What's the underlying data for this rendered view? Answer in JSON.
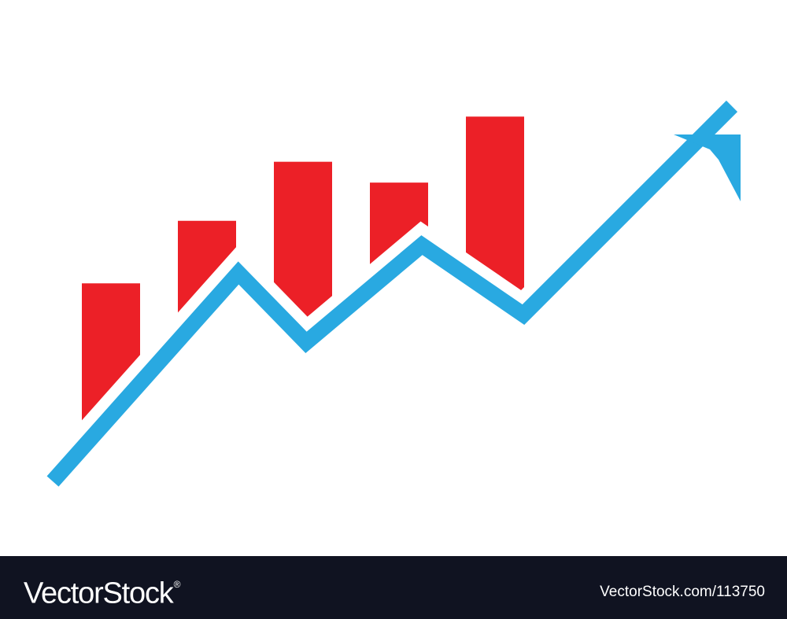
{
  "chart_data": {
    "type": "bar",
    "title": "",
    "xlabel": "",
    "ylabel": "",
    "bar_color": "#ec2027",
    "values": [
      5.7,
      7.5,
      9.2,
      8.6,
      10.5
    ],
    "ylim": [
      0,
      12
    ],
    "trend": {
      "type": "line",
      "color": "#29a9e1",
      "values": [
        0,
        6,
        4,
        6.8,
        4.8,
        10.8
      ],
      "arrow_head": true
    },
    "grid": false,
    "legend": "none"
  },
  "watermark": {
    "brand": "VectorStock",
    "registered_mark": "®",
    "image_id": "VectorStock.com/113750"
  }
}
